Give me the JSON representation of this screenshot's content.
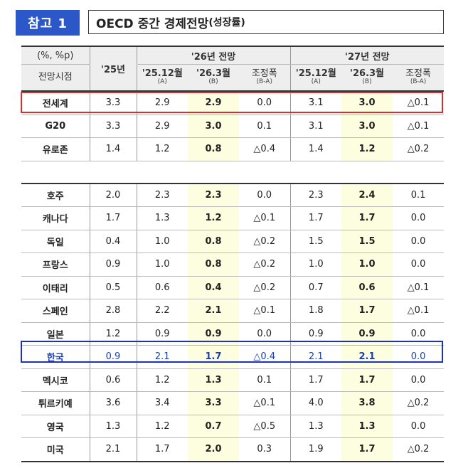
{
  "badge": "참고 1",
  "title": {
    "main": "OECD 중간 경제전망",
    "sub": "(성장률)"
  },
  "header": {
    "unit": "(%, %p)",
    "row_label": "전망시점",
    "col_25": "'25년",
    "group_26": "'26년 전망",
    "group_27": "'27년 전망",
    "sub_dec": "'25.12월",
    "sub_dec_note": "(A)",
    "sub_mar": "'26.3월",
    "sub_mar_note": "(B)",
    "sub_adj": "조정폭",
    "sub_adj_note": "(B-A)"
  },
  "group1": [
    {
      "name": "전세계",
      "y25": "3.3",
      "a26": "2.9",
      "b26": "2.9",
      "d26": "0.0",
      "a27": "3.1",
      "b27": "3.0",
      "d27": "△0.1"
    },
    {
      "name": "G20",
      "y25": "3.3",
      "a26": "2.9",
      "b26": "3.0",
      "d26": "0.1",
      "a27": "3.1",
      "b27": "3.0",
      "d27": "△0.1"
    },
    {
      "name": "유로존",
      "y25": "1.4",
      "a26": "1.2",
      "b26": "0.8",
      "d26": "△0.4",
      "a27": "1.4",
      "b27": "1.2",
      "d27": "△0.2"
    }
  ],
  "group2": [
    {
      "name": "호주",
      "y25": "2.0",
      "a26": "2.3",
      "b26": "2.3",
      "d26": "0.0",
      "a27": "2.3",
      "b27": "2.4",
      "d27": "0.1"
    },
    {
      "name": "캐나다",
      "y25": "1.7",
      "a26": "1.3",
      "b26": "1.2",
      "d26": "△0.1",
      "a27": "1.7",
      "b27": "1.7",
      "d27": "0.0"
    },
    {
      "name": "독일",
      "y25": "0.4",
      "a26": "1.0",
      "b26": "0.8",
      "d26": "△0.2",
      "a27": "1.5",
      "b27": "1.5",
      "d27": "0.0"
    },
    {
      "name": "프랑스",
      "y25": "0.9",
      "a26": "1.0",
      "b26": "0.8",
      "d26": "△0.2",
      "a27": "1.0",
      "b27": "1.0",
      "d27": "0.0"
    },
    {
      "name": "이태리",
      "y25": "0.5",
      "a26": "0.6",
      "b26": "0.4",
      "d26": "△0.2",
      "a27": "0.7",
      "b27": "0.6",
      "d27": "△0.1"
    },
    {
      "name": "스페인",
      "y25": "2.8",
      "a26": "2.2",
      "b26": "2.1",
      "d26": "△0.1",
      "a27": "1.8",
      "b27": "1.7",
      "d27": "△0.1"
    },
    {
      "name": "일본",
      "y25": "1.2",
      "a26": "0.9",
      "b26": "0.9",
      "d26": "0.0",
      "a27": "0.9",
      "b27": "0.9",
      "d27": "0.0"
    },
    {
      "name": "한국",
      "y25": "0.9",
      "a26": "2.1",
      "b26": "1.7",
      "d26": "△0.4",
      "a27": "2.1",
      "b27": "2.1",
      "d27": "0.0"
    },
    {
      "name": "멕시코",
      "y25": "0.6",
      "a26": "1.2",
      "b26": "1.3",
      "d26": "0.1",
      "a27": "1.7",
      "b27": "1.7",
      "d27": "0.0"
    },
    {
      "name": "튀르키예",
      "y25": "3.6",
      "a26": "3.4",
      "b26": "3.3",
      "d26": "△0.1",
      "a27": "4.0",
      "b27": "3.8",
      "d27": "△0.2"
    },
    {
      "name": "영국",
      "y25": "1.3",
      "a26": "1.2",
      "b26": "0.7",
      "d26": "△0.5",
      "a27": "1.3",
      "b27": "1.3",
      "d27": "0.0"
    },
    {
      "name": "미국",
      "y25": "2.1",
      "a26": "1.7",
      "b26": "2.0",
      "d26": "0.3",
      "a27": "1.9",
      "b27": "1.7",
      "d27": "△0.2"
    }
  ],
  "colors": {
    "badge": "#2b57c8",
    "highlight": "#fdfde0",
    "world_box": "#d43030",
    "korea_box": "#2030c0"
  }
}
